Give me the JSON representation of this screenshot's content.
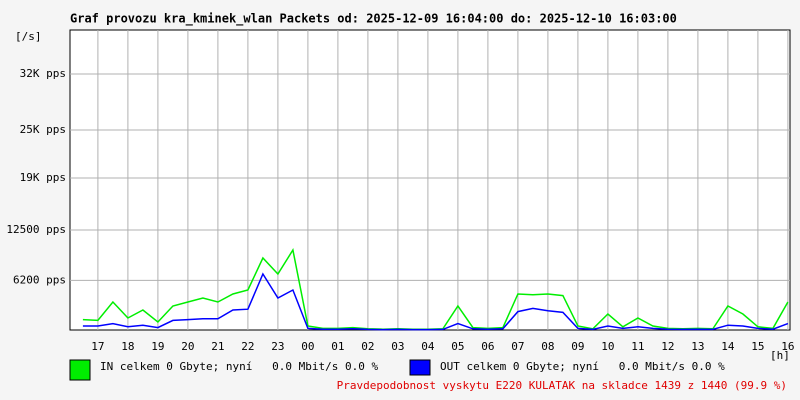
{
  "chart_data": {
    "type": "line",
    "title": "Graf provozu kra_kminek_wlan Packets od: 2025-12-09 16:04:00 do: 2025-12-10 16:03:00",
    "y_label": "[/s]",
    "x_label": "[h]",
    "x": [
      16.5,
      17,
      17.5,
      18,
      18.5,
      19,
      19.5,
      20,
      20.5,
      21,
      21.5,
      22,
      22.5,
      23,
      23.5,
      24,
      24.5,
      25,
      25.5,
      26,
      26.5,
      27,
      27.5,
      28,
      28.5,
      29,
      29.5,
      30,
      30.5,
      31,
      31.5,
      32,
      32.5,
      33,
      33.5,
      34,
      34.5,
      35,
      35.5,
      36,
      36.5,
      37,
      37.5,
      38,
      38.5,
      39,
      39.5,
      40
    ],
    "series": [
      {
        "name": "IN celkem 0 Gbyte; nyní   0.0 Mbit/s 0.0 %",
        "color": "#00ee00",
        "values": [
          1300,
          1200,
          3500,
          1500,
          2500,
          1000,
          3000,
          3500,
          4000,
          3500,
          4500,
          5000,
          9000,
          7000,
          10000,
          500,
          200,
          200,
          300,
          150,
          100,
          150,
          100,
          100,
          150,
          3000,
          300,
          200,
          300,
          4500,
          4400,
          4500,
          4300,
          500,
          150,
          2000,
          400,
          1500,
          500,
          200,
          150,
          200,
          150,
          3000,
          2000,
          400,
          200,
          3500
        ]
      },
      {
        "name": "OUT celkem 0 Gbyte; nyní   0.0 Mbit/s 0.0 %",
        "color": "#0000ff",
        "values": [
          500,
          500,
          800,
          400,
          600,
          300,
          1200,
          1300,
          1400,
          1400,
          2500,
          2600,
          7000,
          4000,
          5000,
          200,
          100,
          100,
          150,
          80,
          50,
          80,
          50,
          50,
          80,
          800,
          150,
          100,
          150,
          2300,
          2700,
          2400,
          2200,
          200,
          80,
          500,
          200,
          400,
          200,
          100,
          80,
          100,
          80,
          600,
          500,
          200,
          100,
          800
        ]
      }
    ],
    "xlim": [
      16.07,
      40.07
    ],
    "xticks": [
      17,
      18,
      19,
      20,
      21,
      22,
      23,
      {
        "value": 24,
        "label": "00"
      },
      {
        "value": 25,
        "label": "01"
      },
      {
        "value": 26,
        "label": "02"
      },
      {
        "value": 27,
        "label": "03"
      },
      {
        "value": 28,
        "label": "04"
      },
      {
        "value": 29,
        "label": "05"
      },
      {
        "value": 30,
        "label": "06"
      },
      {
        "value": 31,
        "label": "07"
      },
      {
        "value": 32,
        "label": "08"
      },
      {
        "value": 33,
        "label": "09"
      },
      {
        "value": 34,
        "label": "10"
      },
      {
        "value": 35,
        "label": "11"
      },
      {
        "value": 36,
        "label": "12"
      },
      {
        "value": 37,
        "label": "13"
      },
      {
        "value": 38,
        "label": "14"
      },
      {
        "value": 39,
        "label": "15"
      },
      {
        "value": 40,
        "label": "16"
      }
    ],
    "ylim": [
      0,
      37500
    ],
    "yticks": [
      {
        "value": 6200,
        "label": "6200 pps"
      },
      {
        "value": 12500,
        "label": "12500 pps"
      },
      {
        "value": 19000,
        "label": "19K pps"
      },
      {
        "value": 25000,
        "label": "25K pps"
      },
      {
        "value": 32000,
        "label": "32K pps"
      }
    ],
    "grid": true,
    "footnote": "Pravdepodobnost vyskytu E220 KULATAK na skladce 1439 z 1440 (99.9 %)"
  }
}
